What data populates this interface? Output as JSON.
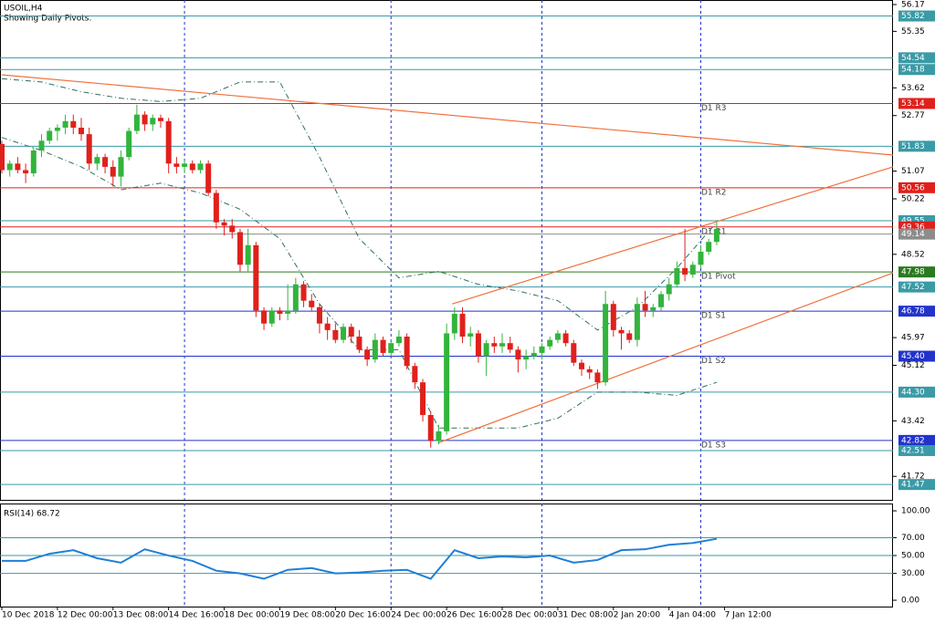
{
  "chart_data": {
    "type": "candlestick",
    "title": "USOIL,H4",
    "subtitle": "Showing Daily Pivots.",
    "up_color": "#32b43c",
    "down_color": "#e0201b",
    "ylim": [
      41.0,
      56.31
    ],
    "yticks": [
      56.17,
      55.35,
      53.62,
      52.77,
      51.07,
      50.22,
      48.52,
      45.97,
      45.12,
      43.42,
      41.72
    ],
    "xlim": [
      0,
      112.2
    ],
    "xticks": [
      {
        "value": 0,
        "label": "10 Dec 2018"
      },
      {
        "value": 7,
        "label": "12 Dec 00:00"
      },
      {
        "value": 14,
        "label": "13 Dec 08:00"
      },
      {
        "value": 21,
        "label": "14 Dec 16:00"
      },
      {
        "value": 28,
        "label": "18 Dec 00:00"
      },
      {
        "value": 35,
        "label": "19 Dec 08:00"
      },
      {
        "value": 42,
        "label": "20 Dec 16:00"
      },
      {
        "value": 49,
        "label": "24 Dec 00:00"
      },
      {
        "value": 56,
        "label": "26 Dec 16:00"
      },
      {
        "value": 63,
        "label": "28 Dec 00:00"
      },
      {
        "value": 70,
        "label": "31 Dec 08:00"
      },
      {
        "value": 77,
        "label": "2 Jan 20:00"
      },
      {
        "value": 84,
        "label": "4 Jan 04:00"
      },
      {
        "value": 91,
        "label": "7 Jan 12:00"
      }
    ],
    "separators": [
      23,
      49,
      68,
      88
    ],
    "separator_color": "#2233cc",
    "candles": [
      [
        51.9,
        52.0,
        51.0,
        51.1
      ],
      [
        51.1,
        51.4,
        50.9,
        51.3
      ],
      [
        51.3,
        51.5,
        51.0,
        51.1
      ],
      [
        51.1,
        51.3,
        50.7,
        51.0
      ],
      [
        51.0,
        51.8,
        50.9,
        51.7
      ],
      [
        51.7,
        52.2,
        51.5,
        52.0
      ],
      [
        52.0,
        52.4,
        51.9,
        52.3
      ],
      [
        52.3,
        52.5,
        52.0,
        52.4
      ],
      [
        52.4,
        52.8,
        52.2,
        52.6
      ],
      [
        52.6,
        52.8,
        52.2,
        52.4
      ],
      [
        52.4,
        52.7,
        52.0,
        52.2
      ],
      [
        52.2,
        52.4,
        51.1,
        51.3
      ],
      [
        51.3,
        51.6,
        51.1,
        51.5
      ],
      [
        51.5,
        51.6,
        51.0,
        51.2
      ],
      [
        51.2,
        51.4,
        50.6,
        50.9
      ],
      [
        50.9,
        51.7,
        50.6,
        51.5
      ],
      [
        51.5,
        52.4,
        51.4,
        52.3
      ],
      [
        52.3,
        53.1,
        52.2,
        52.8
      ],
      [
        52.8,
        52.9,
        52.3,
        52.5
      ],
      [
        52.5,
        52.8,
        52.3,
        52.7
      ],
      [
        52.7,
        52.8,
        52.4,
        52.6
      ],
      [
        52.6,
        52.7,
        51.0,
        51.3
      ],
      [
        51.3,
        51.5,
        51.0,
        51.2
      ],
      [
        51.2,
        51.4,
        51.0,
        51.3
      ],
      [
        51.3,
        51.4,
        51.0,
        51.1
      ],
      [
        51.1,
        51.4,
        51.0,
        51.3
      ],
      [
        51.3,
        51.4,
        50.3,
        50.4
      ],
      [
        50.4,
        50.5,
        49.3,
        49.5
      ],
      [
        49.5,
        49.6,
        49.1,
        49.4
      ],
      [
        49.4,
        49.6,
        49.0,
        49.2
      ],
      [
        49.2,
        49.3,
        48.0,
        48.2
      ],
      [
        48.2,
        49.3,
        48.0,
        48.8
      ],
      [
        48.8,
        48.9,
        46.6,
        46.8
      ],
      [
        46.8,
        46.9,
        46.2,
        46.4
      ],
      [
        46.4,
        46.9,
        46.3,
        46.8
      ],
      [
        46.8,
        46.9,
        46.5,
        46.7
      ],
      [
        46.7,
        47.6,
        46.5,
        46.8
      ],
      [
        46.8,
        47.8,
        46.7,
        47.6
      ],
      [
        47.6,
        47.7,
        46.9,
        47.1
      ],
      [
        47.1,
        47.3,
        46.8,
        46.9
      ],
      [
        46.9,
        47.0,
        46.1,
        46.4
      ],
      [
        46.4,
        46.6,
        45.9,
        46.2
      ],
      [
        46.2,
        46.4,
        45.8,
        45.9
      ],
      [
        45.9,
        46.4,
        45.8,
        46.3
      ],
      [
        46.3,
        46.4,
        45.8,
        46.0
      ],
      [
        46.0,
        46.2,
        45.5,
        45.6
      ],
      [
        45.6,
        45.7,
        45.1,
        45.3
      ],
      [
        45.3,
        46.1,
        45.2,
        45.9
      ],
      [
        45.9,
        46.0,
        45.4,
        45.5
      ],
      [
        45.5,
        45.9,
        45.4,
        45.8
      ],
      [
        45.8,
        46.2,
        45.7,
        46.0
      ],
      [
        46.0,
        46.1,
        45.0,
        45.1
      ],
      [
        45.1,
        45.2,
        44.4,
        44.6
      ],
      [
        44.6,
        44.7,
        43.4,
        43.6
      ],
      [
        43.6,
        43.7,
        42.6,
        42.8
      ],
      [
        42.8,
        43.3,
        42.7,
        43.1
      ],
      [
        43.1,
        46.4,
        43.0,
        46.1
      ],
      [
        46.1,
        46.9,
        45.9,
        46.7
      ],
      [
        46.7,
        46.9,
        45.8,
        46.0
      ],
      [
        46.0,
        46.3,
        45.7,
        46.1
      ],
      [
        46.1,
        46.2,
        45.2,
        45.4
      ],
      [
        45.4,
        45.9,
        44.8,
        45.8
      ],
      [
        45.8,
        46.0,
        45.5,
        45.7
      ],
      [
        45.7,
        46.1,
        45.5,
        45.8
      ],
      [
        45.8,
        46.0,
        45.5,
        45.6
      ],
      [
        45.6,
        45.7,
        44.9,
        45.3
      ],
      [
        45.3,
        45.6,
        45.0,
        45.4
      ],
      [
        45.4,
        45.7,
        45.3,
        45.5
      ],
      [
        45.5,
        45.8,
        45.3,
        45.7
      ],
      [
        45.7,
        46.0,
        45.6,
        45.9
      ],
      [
        45.9,
        46.2,
        45.8,
        46.1
      ],
      [
        46.1,
        46.2,
        45.7,
        45.8
      ],
      [
        45.8,
        45.9,
        45.1,
        45.2
      ],
      [
        45.2,
        45.3,
        44.8,
        45.0
      ],
      [
        45.0,
        45.1,
        44.7,
        44.9
      ],
      [
        44.9,
        45.0,
        44.4,
        44.6
      ],
      [
        44.6,
        47.4,
        44.5,
        47.0
      ],
      [
        47.0,
        47.1,
        46.0,
        46.2
      ],
      [
        46.2,
        46.3,
        45.6,
        46.1
      ],
      [
        46.1,
        46.2,
        45.8,
        45.9
      ],
      [
        45.9,
        47.2,
        45.7,
        47.0
      ],
      [
        47.0,
        47.4,
        46.6,
        46.8
      ],
      [
        46.8,
        47.0,
        46.6,
        46.9
      ],
      [
        46.9,
        47.4,
        46.8,
        47.3
      ],
      [
        47.3,
        47.8,
        47.1,
        47.6
      ],
      [
        47.6,
        48.3,
        47.5,
        48.1
      ],
      [
        48.1,
        49.3,
        47.7,
        47.9
      ],
      [
        47.9,
        48.3,
        47.8,
        48.2
      ],
      [
        48.2,
        48.8,
        48.1,
        48.6
      ],
      [
        48.6,
        49.0,
        48.5,
        48.9
      ],
      [
        48.9,
        49.5,
        48.8,
        49.3
      ]
    ],
    "bands": [
      {
        "color": "#2f6f5f",
        "x": [
          0,
          5,
          10,
          15,
          20,
          25,
          30,
          35,
          40,
          45,
          50,
          55,
          60,
          65,
          70,
          75,
          80,
          85,
          90
        ],
        "values": [
          53.9,
          53.8,
          53.5,
          53.3,
          53.2,
          53.3,
          53.8,
          53.8,
          51.5,
          49.0,
          47.8,
          48.0,
          47.6,
          47.4,
          47.1,
          46.2,
          46.9,
          48.1,
          49.5
        ]
      },
      {
        "color": "#2f6f5f",
        "x": [
          0,
          5,
          10,
          15,
          20,
          25,
          30,
          35,
          40,
          45,
          50,
          55,
          60,
          65,
          70,
          75,
          80,
          85,
          90
        ],
        "values": [
          52.1,
          51.7,
          51.2,
          50.5,
          50.7,
          50.4,
          49.9,
          49.0,
          47.0,
          45.6,
          45.6,
          43.2,
          43.2,
          43.2,
          43.5,
          44.3,
          44.3,
          44.2,
          44.6
        ]
      }
    ],
    "trendlines": [
      {
        "color": "#f0703c",
        "x": [
          0,
          112.2
        ],
        "values": [
          54.02,
          51.56
        ]
      },
      {
        "color": "#f0703c",
        "x": [
          55,
          112.2
        ],
        "values": [
          42.75,
          47.95
        ]
      },
      {
        "color": "#f0703c",
        "x": [
          56.7,
          112.2
        ],
        "values": [
          47.0,
          51.2
        ]
      }
    ],
    "levels": [
      {
        "value": 55.82,
        "color": "#3a9aa6"
      },
      {
        "value": 54.54,
        "color": "#3a9aa6"
      },
      {
        "value": 54.18,
        "color": "#3a9aa6"
      },
      {
        "value": 53.14,
        "color": "#e0201b",
        "label": "D1 R3"
      },
      {
        "value": 51.83,
        "color": "#3a9aa6"
      },
      {
        "value": 50.56,
        "color": "#e0201b",
        "label": "D1 R2"
      },
      {
        "value": 49.55,
        "color": "#3a9aa6"
      },
      {
        "value": 49.36,
        "color": "#e0201b",
        "label": "D1 R1"
      },
      {
        "value": 49.14,
        "color": "#8c8c8c"
      },
      {
        "value": 47.98,
        "color": "#2a7a1e",
        "label": "D1 Pivot"
      },
      {
        "value": 47.52,
        "color": "#3a9aa6"
      },
      {
        "value": 46.78,
        "color": "#2233cc",
        "label": "D1 S1"
      },
      {
        "value": {
          "value": 45.4,
          "label": "45.40"
        },
        "color": "#2233cc",
        "label": "D1 S2"
      },
      {
        "value": {
          "value": 44.3,
          "label": "44.30"
        },
        "color": "#3a9aa6"
      },
      {
        "value": 42.82,
        "color": "#2233cc",
        "label": "D1 S3"
      },
      {
        "value": 42.51,
        "color": "#3a9aa6"
      },
      {
        "value": 41.47,
        "color": "#3a9aa6"
      }
    ],
    "rsi": {
      "title": "RSI(14) 68.72",
      "color": "#1f7fd6",
      "ylim": [
        -7.1,
        108.2
      ],
      "yticks": [
        {
          "value": 100,
          "label": "100.00"
        },
        {
          "value": 70,
          "label": "70.00"
        },
        {
          "value": 50,
          "label": "50.00"
        },
        {
          "value": 30,
          "label": "30.00"
        },
        {
          "value": 0,
          "label": "0.00"
        }
      ],
      "levels": [
        70,
        50,
        30
      ],
      "level_color": "#3a9aa6",
      "x": [
        0,
        3,
        6,
        9,
        12,
        15,
        18,
        21,
        24,
        27,
        30,
        33,
        36,
        39,
        42,
        45,
        48,
        51,
        54,
        57,
        60,
        63,
        66,
        69,
        72,
        75,
        78,
        81,
        84,
        87,
        90
      ],
      "values": [
        44,
        44,
        52,
        56,
        47,
        42,
        57,
        50,
        44,
        33,
        30,
        24,
        34,
        36,
        30,
        31,
        33,
        34,
        24,
        56,
        47,
        49,
        48,
        50,
        42,
        45,
        56,
        57,
        62,
        64,
        68.72
      ]
    }
  }
}
